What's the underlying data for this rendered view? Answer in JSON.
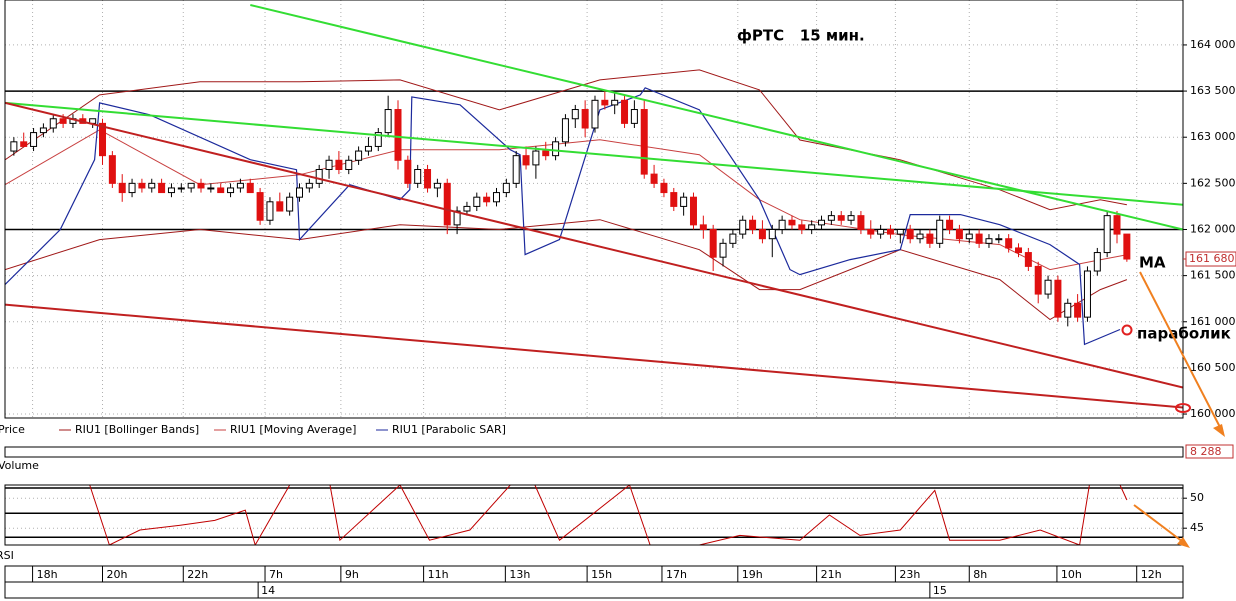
{
  "chart_data": [
    {
      "type": "candlestick",
      "title": "фРТС   15 мин.",
      "annotations": [
        "МА",
        "параболик"
      ],
      "candles": {
        "name": "Price",
        "ohlc": [
          [
            162850,
            163000,
            162800,
            162950
          ],
          [
            162950,
            163050,
            162900,
            162900
          ],
          [
            162900,
            163100,
            162850,
            163050
          ],
          [
            163050,
            163150,
            163000,
            163100
          ],
          [
            163100,
            163250,
            163050,
            163200
          ],
          [
            163200,
            163250,
            163100,
            163150
          ],
          [
            163150,
            163250,
            163100,
            163200
          ],
          [
            163200,
            163250,
            163150,
            163150
          ],
          [
            163150,
            163200,
            163100,
            163200
          ],
          [
            163150,
            163200,
            162700,
            162800
          ],
          [
            162800,
            162850,
            162450,
            162500
          ],
          [
            162500,
            162600,
            162300,
            162400
          ],
          [
            162400,
            162550,
            162350,
            162500
          ],
          [
            162500,
            162550,
            162400,
            162450
          ],
          [
            162450,
            162550,
            162400,
            162500
          ],
          [
            162500,
            162550,
            162400,
            162400
          ],
          [
            162400,
            162500,
            162350,
            162450
          ],
          [
            162450,
            162500,
            162400,
            162450
          ],
          [
            162450,
            162500,
            162400,
            162500
          ],
          [
            162500,
            162550,
            162400,
            162450
          ],
          [
            162450,
            162500,
            162400,
            162450
          ],
          [
            162450,
            162500,
            162400,
            162400
          ],
          [
            162400,
            162500,
            162350,
            162450
          ],
          [
            162450,
            162550,
            162400,
            162500
          ],
          [
            162500,
            162550,
            162400,
            162400
          ],
          [
            162400,
            162450,
            162050,
            162100
          ],
          [
            162100,
            162350,
            162050,
            162300
          ],
          [
            162300,
            162400,
            162200,
            162200
          ],
          [
            162200,
            162400,
            162150,
            162350
          ],
          [
            162350,
            162500,
            162300,
            162450
          ],
          [
            162450,
            162550,
            162400,
            162500
          ],
          [
            162500,
            162700,
            162450,
            162650
          ],
          [
            162650,
            162800,
            162550,
            162750
          ],
          [
            162750,
            162850,
            162600,
            162650
          ],
          [
            162650,
            162800,
            162600,
            162750
          ],
          [
            162750,
            162900,
            162700,
            162850
          ],
          [
            162850,
            163000,
            162800,
            162900
          ],
          [
            162900,
            163100,
            162850,
            163050
          ],
          [
            163050,
            163450,
            163000,
            163300
          ],
          [
            163300,
            163400,
            162650,
            162750
          ],
          [
            162750,
            162800,
            162450,
            162500
          ],
          [
            162500,
            162700,
            162450,
            162650
          ],
          [
            162650,
            162700,
            162400,
            162450
          ],
          [
            162450,
            162550,
            162350,
            162500
          ],
          [
            162500,
            162550,
            161950,
            162050
          ],
          [
            162050,
            162250,
            161950,
            162200
          ],
          [
            162200,
            162300,
            162150,
            162250
          ],
          [
            162250,
            162400,
            162200,
            162350
          ],
          [
            162350,
            162400,
            162250,
            162300
          ],
          [
            162300,
            162450,
            162250,
            162400
          ],
          [
            162400,
            162550,
            162350,
            162500
          ],
          [
            162500,
            162850,
            162450,
            162800
          ],
          [
            162800,
            162900,
            162650,
            162700
          ],
          [
            162700,
            162900,
            162550,
            162850
          ],
          [
            162850,
            162950,
            162750,
            162800
          ],
          [
            162800,
            163000,
            162750,
            162950
          ],
          [
            162950,
            163250,
            162900,
            163200
          ],
          [
            163200,
            163350,
            163100,
            163300
          ],
          [
            163300,
            163400,
            163000,
            163100
          ],
          [
            163100,
            163450,
            163050,
            163400
          ],
          [
            163400,
            163500,
            163300,
            163350
          ],
          [
            163350,
            163500,
            163250,
            163400
          ],
          [
            163400,
            163450,
            163100,
            163150
          ],
          [
            163150,
            163400,
            163100,
            163300
          ],
          [
            163300,
            163400,
            162550,
            162600
          ],
          [
            162600,
            162700,
            162450,
            162500
          ],
          [
            162500,
            162550,
            162350,
            162400
          ],
          [
            162400,
            162450,
            162200,
            162250
          ],
          [
            162250,
            162400,
            162150,
            162350
          ],
          [
            162350,
            162400,
            162000,
            162050
          ],
          [
            162050,
            162150,
            161900,
            162000
          ],
          [
            162000,
            162050,
            161550,
            161700
          ],
          [
            161700,
            161900,
            161600,
            161850
          ],
          [
            161850,
            162000,
            161800,
            161950
          ],
          [
            161950,
            162150,
            161900,
            162100
          ],
          [
            162100,
            162150,
            161950,
            162000
          ],
          [
            162000,
            162100,
            161850,
            161900
          ],
          [
            161900,
            162050,
            161700,
            162000
          ],
          [
            162000,
            162150,
            161950,
            162100
          ],
          [
            162100,
            162150,
            162000,
            162050
          ],
          [
            162050,
            162100,
            161950,
            162000
          ],
          [
            162000,
            162100,
            161950,
            162050
          ],
          [
            162050,
            162150,
            162000,
            162100
          ],
          [
            162100,
            162200,
            162050,
            162150
          ],
          [
            162150,
            162200,
            162050,
            162100
          ],
          [
            162100,
            162200,
            162050,
            162150
          ],
          [
            162150,
            162200,
            161950,
            162000
          ],
          [
            162000,
            162100,
            161900,
            161950
          ],
          [
            161950,
            162050,
            161900,
            162000
          ],
          [
            162000,
            162050,
            161900,
            161950
          ],
          [
            161950,
            162000,
            161850,
            162000
          ],
          [
            162000,
            162050,
            161850,
            161900
          ],
          [
            161900,
            162000,
            161850,
            161950
          ],
          [
            161950,
            162000,
            161800,
            161850
          ],
          [
            161850,
            162150,
            161800,
            162100
          ],
          [
            162100,
            162150,
            161950,
            162000
          ],
          [
            162000,
            162050,
            161850,
            161900
          ],
          [
            161900,
            162000,
            161850,
            161950
          ],
          [
            161950,
            162000,
            161800,
            161850
          ],
          [
            161850,
            161950,
            161800,
            161900
          ],
          [
            161900,
            161950,
            161850,
            161900
          ],
          [
            161900,
            161950,
            161750,
            161800
          ],
          [
            161800,
            161850,
            161700,
            161750
          ],
          [
            161750,
            161800,
            161550,
            161600
          ],
          [
            161600,
            161650,
            161200,
            161300
          ],
          [
            161300,
            161500,
            161250,
            161450
          ],
          [
            161450,
            161500,
            161000,
            161050
          ],
          [
            161050,
            161250,
            160950,
            161200
          ],
          [
            161200,
            161300,
            161000,
            161050
          ],
          [
            161050,
            161600,
            161000,
            161550
          ],
          [
            161550,
            161800,
            161500,
            161750
          ],
          [
            161750,
            162200,
            161700,
            162150
          ],
          [
            162150,
            162200,
            161850,
            161950
          ],
          [
            161950,
            161950,
            161650,
            161680
          ]
        ]
      },
      "series": [
        {
          "name": "RIU1 [Bollinger Bands]",
          "color": "#a01818",
          "x": [
            -0.9,
            8.7,
            18.9,
            29,
            39.2,
            49.3,
            59.5,
            69.6,
            75.7,
            79.8,
            90,
            100.1,
            105.2,
            110.3,
            113
          ],
          "upper": [
            162755,
            163459,
            163600,
            163600,
            163621,
            163296,
            163621,
            163730,
            163513,
            162970,
            162755,
            162430,
            162214,
            162322,
            162268
          ],
          "lower": [
            161565,
            161890,
            162000,
            161890,
            162052,
            162000,
            162106,
            161781,
            161348,
            161348,
            161781,
            161457,
            161024,
            161348,
            161457
          ]
        },
        {
          "name": "RIU1 [Moving Average]",
          "color": "#c84040",
          "x": [
            -0.9,
            8.7,
            18.9,
            29,
            39.2,
            49.3,
            59.5,
            69.6,
            75.7,
            79.8,
            90,
            100.1,
            105.2,
            110.3,
            113
          ],
          "values": [
            162485,
            163080,
            162485,
            162593,
            162864,
            162864,
            162972,
            162810,
            162323,
            162106,
            161944,
            161836,
            161565,
            161673,
            161727
          ]
        },
        {
          "name": "RIU1 [Parabolic SAR]",
          "color": "#1c2a9c",
          "x": [
            -0.9,
            4.7,
            8.2,
            8.7,
            13.8,
            24,
            28.7,
            29,
            34.1,
            39.2,
            40.2,
            40.4,
            45.3,
            50.4,
            51.4,
            51.9,
            55.4,
            59.5,
            63.6,
            64.1,
            69.6,
            75.7,
            78.8,
            79.8,
            84.9,
            90,
            91,
            96.1,
            100.1,
            105.2,
            108.2,
            108.7,
            112.3
          ],
          "values": [
            161403,
            161998,
            162756,
            163372,
            163243,
            162756,
            162648,
            161890,
            162485,
            162323,
            162431,
            163437,
            163351,
            162864,
            162810,
            161728,
            161890,
            163297,
            163459,
            163535,
            163297,
            162323,
            161565,
            161511,
            161674,
            161782,
            162161,
            162161,
            162052,
            161836,
            161620,
            160755,
            160916
          ]
        }
      ],
      "trendlines": [
        {
          "color": "#33dd33",
          "x": [
            24,
            118.7
          ],
          "values": [
            164433,
            162000
          ]
        },
        {
          "color": "#33dd33",
          "x": [
            -0.9,
            118.7
          ],
          "values": [
            163372,
            162268
          ]
        },
        {
          "color": "#c02020",
          "x": [
            -0.9,
            118.7
          ],
          "values": [
            163372,
            160288
          ]
        },
        {
          "color": "#c02020",
          "x": [
            -0.9,
            118.7
          ],
          "values": [
            161186,
            160071
          ]
        }
      ],
      "hlines": [
        163500,
        162000
      ],
      "last_price": 161680,
      "last_price_label": "161 680",
      "xlim": [
        -0.9,
        118.7
      ],
      "ylim": [
        159957,
        164487
      ],
      "yticks": [
        {
          "value": 164000,
          "label": "164 000"
        },
        {
          "value": 163500,
          "label": "163 500"
        },
        {
          "value": 163000,
          "label": "163 000"
        },
        {
          "value": 162500,
          "label": "162 500"
        },
        {
          "value": 162000,
          "label": "162 000"
        },
        {
          "value": 161500,
          "label": "161 500"
        },
        {
          "value": 161000,
          "label": "161 000"
        },
        {
          "value": 160500,
          "label": "160 500"
        },
        {
          "value": 160000,
          "label": "160 000"
        }
      ],
      "xticks": [
        {
          "value": 1.9,
          "label": "18h"
        },
        {
          "value": 9,
          "label": "20h"
        },
        {
          "value": 17.2,
          "label": "22h"
        },
        {
          "value": 25.5,
          "label": "7h"
        },
        {
          "value": 33.2,
          "label": "9h"
        },
        {
          "value": 41.6,
          "label": "11h"
        },
        {
          "value": 49.9,
          "label": "13h"
        },
        {
          "value": 58.2,
          "label": "15h"
        },
        {
          "value": 65.8,
          "label": "17h"
        },
        {
          "value": 73.5,
          "label": "19h"
        },
        {
          "value": 81.5,
          "label": "21h"
        },
        {
          "value": 89.5,
          "label": "23h"
        },
        {
          "value": 97,
          "label": "8h"
        },
        {
          "value": 105.9,
          "label": "10h"
        },
        {
          "value": 114,
          "label": "12h"
        }
      ],
      "day_ticks": [
        {
          "value": 24.8,
          "label": "14"
        },
        {
          "value": 93,
          "label": "15"
        }
      ],
      "grid": true
    },
    {
      "type": "volume",
      "label": "Volume",
      "last_value_label": "8 288"
    },
    {
      "type": "line",
      "label": "RSI",
      "color": "#c00000",
      "x": [
        7.7,
        9.7,
        12.8,
        16.9,
        20.4,
        23.5,
        24.5,
        28,
        32.1,
        33.1,
        39.2,
        42.2,
        46.3,
        50.4,
        52.9,
        55.4,
        62.5,
        64.6,
        69.6,
        73.7,
        79.8,
        82.8,
        85.9,
        90,
        93.5,
        95,
        100.1,
        104.2,
        108.2,
        109.2,
        112.3,
        113
      ],
      "values": [
        52.2,
        42.2,
        44.7,
        45.5,
        46.3,
        48,
        42.2,
        52.2,
        52.2,
        43,
        52.2,
        43,
        44.7,
        52.2,
        52.2,
        43,
        52.2,
        42.2,
        42.2,
        43.8,
        43,
        47.2,
        43.8,
        44.7,
        51.3,
        43,
        43,
        44.7,
        42.2,
        52.2,
        52.2,
        49.7
      ],
      "hlines": [
        51.7,
        47.5,
        43.5
      ],
      "xlim": [
        -0.9,
        118.7
      ],
      "ylim": [
        42.2,
        52.2
      ],
      "yticks": [
        50,
        45
      ],
      "grid": true
    }
  ]
}
